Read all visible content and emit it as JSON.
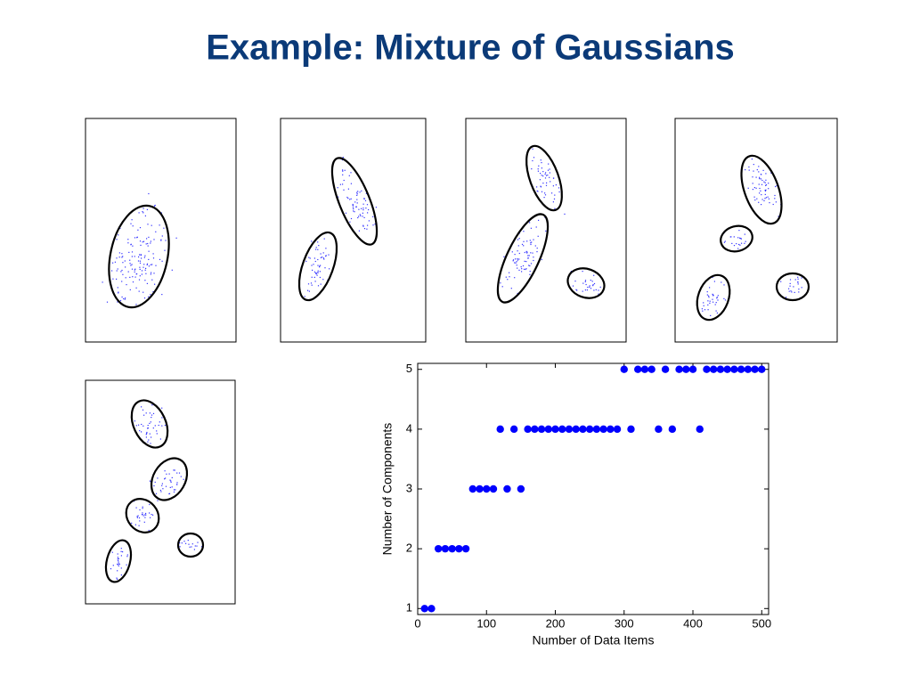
{
  "title": "Example: Mixture of Gaussians",
  "chart_data": {
    "type": "scatter",
    "xlabel": "Number of Data Items",
    "ylabel": "Number of Components",
    "x": [
      10,
      20,
      30,
      40,
      50,
      60,
      70,
      80,
      90,
      100,
      110,
      120,
      130,
      140,
      150,
      160,
      170,
      180,
      190,
      200,
      210,
      220,
      230,
      240,
      250,
      260,
      270,
      280,
      290,
      300,
      310,
      320,
      330,
      340,
      350,
      360,
      370,
      380,
      390,
      400,
      410,
      420,
      430,
      440,
      450,
      460,
      470,
      480,
      490,
      500
    ],
    "values": [
      1,
      1,
      2,
      2,
      2,
      2,
      2,
      3,
      3,
      3,
      3,
      4,
      3,
      4,
      3,
      4,
      4,
      4,
      4,
      4,
      4,
      4,
      4,
      4,
      4,
      4,
      4,
      4,
      4,
      5,
      4,
      5,
      5,
      5,
      4,
      5,
      4,
      5,
      5,
      5,
      4,
      5,
      5,
      5,
      5,
      5,
      5,
      5,
      5,
      5
    ],
    "color": "#0000ff",
    "xlim": [
      0,
      510
    ],
    "ylim": [
      0.9,
      5.1
    ],
    "xticks": [
      0,
      100,
      200,
      300,
      400,
      500
    ],
    "yticks": [
      1,
      2,
      3,
      4,
      5
    ]
  }
}
